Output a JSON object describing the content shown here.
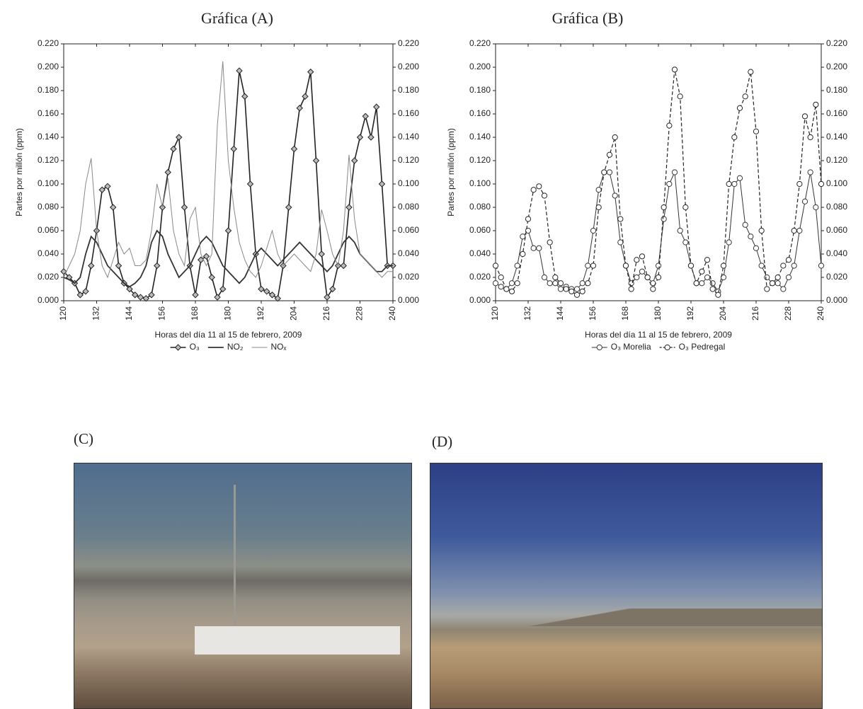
{
  "chart_data": [
    {
      "type": "line",
      "title": "Gráfica (A)",
      "ylabel": "Partes por millón (ppm)",
      "xlabel": "Horas del día 11 al 15 de febrero, 2009",
      "x": [
        120,
        122,
        124,
        126,
        128,
        130,
        132,
        134,
        136,
        138,
        140,
        142,
        144,
        146,
        148,
        150,
        152,
        154,
        156,
        158,
        160,
        162,
        164,
        166,
        168,
        170,
        172,
        174,
        176,
        178,
        180,
        182,
        184,
        186,
        188,
        190,
        192,
        194,
        196,
        198,
        200,
        202,
        204,
        206,
        208,
        210,
        212,
        214,
        216,
        218,
        220,
        222,
        224,
        226,
        228,
        230,
        232,
        234,
        236,
        238,
        240
      ],
      "xlim": [
        120,
        240
      ],
      "xticks": [
        120,
        132,
        144,
        156,
        168,
        180,
        192,
        204,
        216,
        228,
        240
      ],
      "ylim": [
        0,
        0.22
      ],
      "y2lim": [
        0,
        0.22
      ],
      "yticks": [
        {
          "value": 0,
          "label": "0.000"
        },
        {
          "value": 0.02,
          "label": "0.020"
        },
        {
          "value": 0.04,
          "label": "0.040"
        },
        {
          "value": 0.06,
          "label": "0.060"
        },
        {
          "value": 0.08,
          "label": "0.080"
        },
        {
          "value": 0.1,
          "label": "0.100"
        },
        {
          "value": 0.12,
          "label": "0.120"
        },
        {
          "value": 0.14,
          "label": "0.140"
        },
        {
          "value": 0.16,
          "label": "0.160"
        },
        {
          "value": 0.18,
          "label": "0.180"
        },
        {
          "value": 0.2,
          "label": "0.200"
        },
        {
          "value": 0.22,
          "label": "0.220"
        }
      ],
      "y2ticks": [
        {
          "value": 0,
          "label": "0.000"
        },
        {
          "value": 0.02,
          "label": "0.020"
        },
        {
          "value": 0.04,
          "label": "0.040"
        },
        {
          "value": 0.06,
          "label": "0.060"
        },
        {
          "value": 0.08,
          "label": "0.080"
        },
        {
          "value": 0.1,
          "label": "0.100"
        },
        {
          "value": 0.12,
          "label": "0.120"
        },
        {
          "value": 0.14,
          "label": "0.140"
        },
        {
          "value": 0.16,
          "label": "0.160"
        },
        {
          "value": 0.18,
          "label": "0.180"
        },
        {
          "value": 0.2,
          "label": "0.200"
        },
        {
          "value": 0.22,
          "label": "0.220"
        }
      ],
      "series": [
        {
          "name": "O₃",
          "color": "#222222",
          "marker": "diamond",
          "line_width": 1.6,
          "dashed": false,
          "values": [
            0.025,
            0.02,
            0.015,
            0.005,
            0.008,
            0.03,
            0.06,
            0.095,
            0.098,
            0.08,
            0.03,
            0.015,
            0.01,
            0.005,
            0.003,
            0.002,
            0.005,
            0.03,
            0.08,
            0.11,
            0.13,
            0.14,
            0.08,
            0.03,
            0.005,
            0.035,
            0.038,
            0.02,
            0.003,
            0.01,
            0.06,
            0.13,
            0.197,
            0.175,
            0.1,
            0.04,
            0.01,
            0.008,
            0.005,
            0.002,
            0.03,
            0.08,
            0.13,
            0.165,
            0.175,
            0.196,
            0.12,
            0.04,
            0.003,
            0.01,
            0.03,
            0.03,
            0.08,
            0.12,
            0.14,
            0.158,
            0.14,
            0.166,
            0.1,
            0.03,
            0.03
          ]
        },
        {
          "name": "NO₂",
          "color": "#333333",
          "marker": null,
          "line_width": 1.8,
          "dashed": false,
          "values": [
            0.02,
            0.018,
            0.015,
            0.02,
            0.04,
            0.055,
            0.05,
            0.04,
            0.03,
            0.025,
            0.02,
            0.015,
            0.012,
            0.015,
            0.02,
            0.03,
            0.05,
            0.06,
            0.055,
            0.04,
            0.03,
            0.02,
            0.025,
            0.03,
            0.04,
            0.05,
            0.055,
            0.05,
            0.04,
            0.03,
            0.025,
            0.02,
            0.015,
            0.02,
            0.03,
            0.04,
            0.045,
            0.04,
            0.035,
            0.03,
            0.035,
            0.04,
            0.045,
            0.05,
            0.045,
            0.04,
            0.035,
            0.03,
            0.025,
            0.03,
            0.04,
            0.05,
            0.055,
            0.05,
            0.04,
            0.035,
            0.03,
            0.025,
            0.025,
            0.03,
            0.03
          ]
        },
        {
          "name": "NOₓ",
          "color": "#888888",
          "marker": null,
          "line_width": 1,
          "dashed": false,
          "values": [
            0.02,
            0.03,
            0.04,
            0.06,
            0.1,
            0.122,
            0.06,
            0.03,
            0.02,
            0.035,
            0.05,
            0.04,
            0.045,
            0.03,
            0.03,
            0.035,
            0.06,
            0.1,
            0.08,
            0.105,
            0.06,
            0.04,
            0.03,
            0.07,
            0.08,
            0.04,
            0.03,
            0.04,
            0.15,
            0.205,
            0.12,
            0.08,
            0.05,
            0.035,
            0.025,
            0.02,
            0.03,
            0.045,
            0.06,
            0.04,
            0.03,
            0.035,
            0.04,
            0.035,
            0.03,
            0.025,
            0.04,
            0.078,
            0.06,
            0.04,
            0.03,
            0.06,
            0.125,
            0.07,
            0.04,
            0.035,
            0.03,
            0.025,
            0.02,
            0.025,
            0.025
          ]
        }
      ]
    },
    {
      "type": "line",
      "title": "Gráfica (B)",
      "ylabel": "Partes por millón (ppm)",
      "xlabel": "Horas del día 11 al 15 de febrero, 2009",
      "x": [
        120,
        122,
        124,
        126,
        128,
        130,
        132,
        134,
        136,
        138,
        140,
        142,
        144,
        146,
        148,
        150,
        152,
        154,
        156,
        158,
        160,
        162,
        164,
        166,
        168,
        170,
        172,
        174,
        176,
        178,
        180,
        182,
        184,
        186,
        188,
        190,
        192,
        194,
        196,
        198,
        200,
        202,
        204,
        206,
        208,
        210,
        212,
        214,
        216,
        218,
        220,
        222,
        224,
        226,
        228,
        230,
        232,
        234,
        236,
        238,
        240
      ],
      "xlim": [
        120,
        240
      ],
      "xticks": [
        120,
        132,
        144,
        156,
        168,
        180,
        192,
        204,
        216,
        228,
        240
      ],
      "ylim": [
        0,
        0.22
      ],
      "y2lim": [
        0,
        0.22
      ],
      "yticks": [
        {
          "value": 0,
          "label": "0.000"
        },
        {
          "value": 0.02,
          "label": "0.020"
        },
        {
          "value": 0.04,
          "label": "0.040"
        },
        {
          "value": 0.06,
          "label": "0.060"
        },
        {
          "value": 0.08,
          "label": "0.080"
        },
        {
          "value": 0.1,
          "label": "0.100"
        },
        {
          "value": 0.12,
          "label": "0.120"
        },
        {
          "value": 0.14,
          "label": "0.140"
        },
        {
          "value": 0.16,
          "label": "0.160"
        },
        {
          "value": 0.18,
          "label": "0.180"
        },
        {
          "value": 0.2,
          "label": "0.200"
        },
        {
          "value": 0.22,
          "label": "0.220"
        }
      ],
      "y2ticks": [
        {
          "value": 0,
          "label": "0.000"
        },
        {
          "value": 0.02,
          "label": "0.020"
        },
        {
          "value": 0.04,
          "label": "0.040"
        },
        {
          "value": 0.06,
          "label": "0.060"
        },
        {
          "value": 0.08,
          "label": "0.080"
        },
        {
          "value": 0.1,
          "label": "0.100"
        },
        {
          "value": 0.12,
          "label": "0.120"
        },
        {
          "value": 0.14,
          "label": "0.140"
        },
        {
          "value": 0.16,
          "label": "0.160"
        },
        {
          "value": 0.18,
          "label": "0.180"
        },
        {
          "value": 0.2,
          "label": "0.200"
        },
        {
          "value": 0.22,
          "label": "0.220"
        }
      ],
      "series": [
        {
          "name": "O₃ Morelia",
          "color": "#333333",
          "marker": "circle",
          "line_width": 1,
          "dashed": false,
          "values": [
            0.015,
            0.012,
            0.01,
            0.015,
            0.03,
            0.055,
            0.06,
            0.045,
            0.045,
            0.02,
            0.015,
            0.015,
            0.01,
            0.012,
            0.01,
            0.01,
            0.015,
            0.03,
            0.06,
            0.095,
            0.11,
            0.11,
            0.09,
            0.05,
            0.03,
            0.015,
            0.02,
            0.025,
            0.02,
            0.015,
            0.03,
            0.07,
            0.1,
            0.11,
            0.06,
            0.05,
            0.03,
            0.015,
            0.015,
            0.02,
            0.015,
            0.008,
            0.02,
            0.05,
            0.1,
            0.105,
            0.065,
            0.055,
            0.045,
            0.03,
            0.02,
            0.015,
            0.015,
            0.01,
            0.02,
            0.03,
            0.06,
            0.085,
            0.11,
            0.08,
            0.03
          ]
        },
        {
          "name": "O₃ Pedregal",
          "color": "#222222",
          "marker": "circle",
          "line_width": 1.2,
          "dashed": true,
          "values": [
            0.03,
            0.02,
            0.01,
            0.008,
            0.015,
            0.04,
            0.07,
            0.095,
            0.098,
            0.09,
            0.05,
            0.02,
            0.015,
            0.01,
            0.008,
            0.005,
            0.008,
            0.015,
            0.03,
            0.08,
            0.11,
            0.125,
            0.14,
            0.07,
            0.03,
            0.01,
            0.035,
            0.038,
            0.02,
            0.01,
            0.02,
            0.08,
            0.15,
            0.198,
            0.175,
            0.08,
            0.03,
            0.015,
            0.025,
            0.035,
            0.01,
            0.005,
            0.03,
            0.1,
            0.14,
            0.165,
            0.175,
            0.196,
            0.145,
            0.06,
            0.01,
            0.015,
            0.02,
            0.03,
            0.035,
            0.06,
            0.1,
            0.158,
            0.14,
            0.168,
            0.1
          ]
        }
      ]
    }
  ],
  "panels": [
    {
      "label": "(C)"
    },
    {
      "label": "(D)"
    }
  ]
}
